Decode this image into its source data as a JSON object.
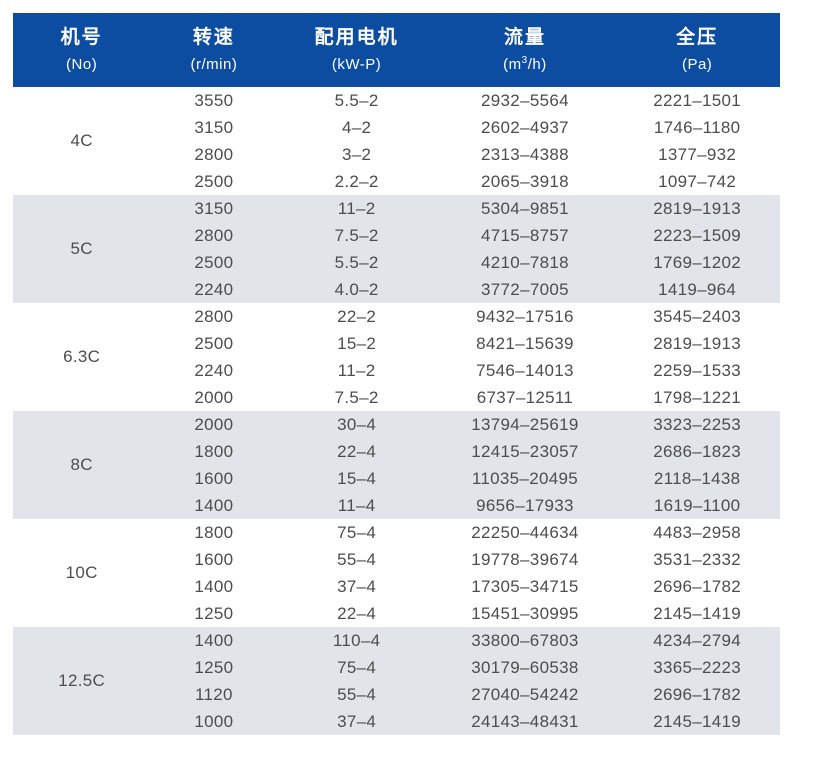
{
  "colors": {
    "header_bg": "#0C4DA2",
    "header_text": "#FFFFFF",
    "stripe_bg": "#E1E4E8",
    "row_bg": "#FFFFFF",
    "body_text": "#4D4D4D"
  },
  "table": {
    "columns": [
      {
        "id": "model",
        "zh": "机号",
        "unit": "(No)"
      },
      {
        "id": "speed",
        "zh": "转速",
        "unit": "(r/min)"
      },
      {
        "id": "motor",
        "zh": "配用电机",
        "unit": "(kW-P)"
      },
      {
        "id": "flow",
        "zh": "流量",
        "unit_prefix": "(m",
        "unit_sup": "3",
        "unit_suffix": "/h)"
      },
      {
        "id": "pressure",
        "zh": "全压",
        "unit": "(Pa)"
      }
    ],
    "groups": [
      {
        "model": "4C",
        "shaded": false,
        "rows": [
          [
            "3550",
            "5.5–2",
            "2932–5564",
            "2221–1501"
          ],
          [
            "3150",
            "4–2",
            "2602–4937",
            "1746–1180"
          ],
          [
            "2800",
            "3–2",
            "2313–4388",
            "1377–932"
          ],
          [
            "2500",
            "2.2–2",
            "2065–3918",
            "1097–742"
          ]
        ]
      },
      {
        "model": "5C",
        "shaded": true,
        "rows": [
          [
            "3150",
            "11–2",
            "5304–9851",
            "2819–1913"
          ],
          [
            "2800",
            "7.5–2",
            "4715–8757",
            "2223–1509"
          ],
          [
            "2500",
            "5.5–2",
            "4210–7818",
            "1769–1202"
          ],
          [
            "2240",
            "4.0–2",
            "3772–7005",
            "1419–964"
          ]
        ]
      },
      {
        "model": "6.3C",
        "shaded": false,
        "rows": [
          [
            "2800",
            "22–2",
            "9432–17516",
            "3545–2403"
          ],
          [
            "2500",
            "15–2",
            "8421–15639",
            "2819–1913"
          ],
          [
            "2240",
            "11–2",
            "7546–14013",
            "2259–1533"
          ],
          [
            "2000",
            "7.5–2",
            "6737–12511",
            "1798–1221"
          ]
        ]
      },
      {
        "model": "8C",
        "shaded": true,
        "rows": [
          [
            "2000",
            "30–4",
            "13794–25619",
            "3323–2253"
          ],
          [
            "1800",
            "22–4",
            "12415–23057",
            "2686–1823"
          ],
          [
            "1600",
            "15–4",
            "11035–20495",
            "2118–1438"
          ],
          [
            "1400",
            "11–4",
            "9656–17933",
            "1619–1100"
          ]
        ]
      },
      {
        "model": "10C",
        "shaded": false,
        "rows": [
          [
            "1800",
            "75–4",
            "22250–44634",
            "4483–2958"
          ],
          [
            "1600",
            "55–4",
            "19778–39674",
            "3531–2332"
          ],
          [
            "1400",
            "37–4",
            "17305–34715",
            "2696–1782"
          ],
          [
            "1250",
            "22–4",
            "15451–30995",
            "2145–1419"
          ]
        ]
      },
      {
        "model": "12.5C",
        "shaded": true,
        "rows": [
          [
            "1400",
            "110–4",
            "33800–67803",
            "4234–2794"
          ],
          [
            "1250",
            "75–4",
            "30179–60538",
            "3365–2223"
          ],
          [
            "1120",
            "55–4",
            "27040–54242",
            "2696–1782"
          ],
          [
            "1000",
            "37–4",
            "24143–48431",
            "2145–1419"
          ]
        ]
      }
    ]
  }
}
